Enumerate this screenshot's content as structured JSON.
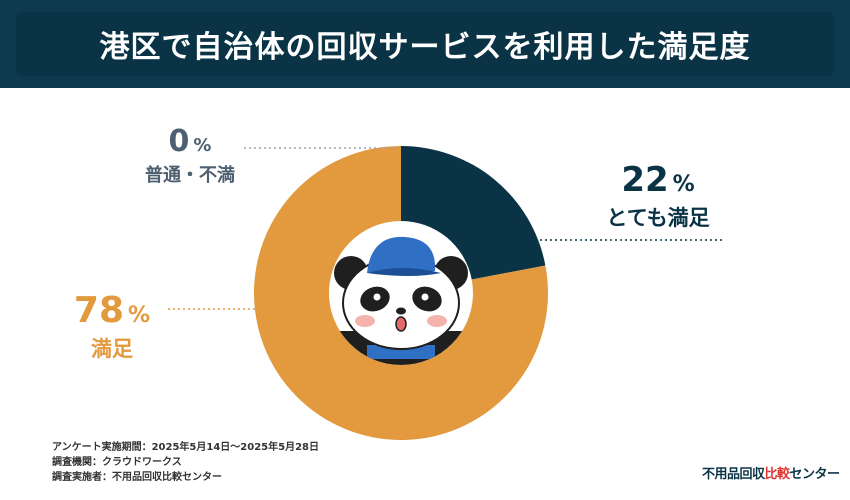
{
  "header": {
    "title": "港区で自治体の回収サービスを利用した満足度"
  },
  "chart_data": {
    "type": "pie",
    "style": "donut",
    "slices": [
      {
        "label": "とても満足",
        "value": 22,
        "color": "#0b3346"
      },
      {
        "label": "満足",
        "value": 78,
        "color": "#e39a3e"
      },
      {
        "label": "普通・不満",
        "value": 0,
        "color": "#4d5f70"
      }
    ],
    "unit": "%"
  },
  "labels": {
    "very_satisfied": {
      "value": "22",
      "unit": "%",
      "name": "とても満足"
    },
    "satisfied": {
      "value": "78",
      "unit": "%",
      "name": "満足"
    },
    "neutral": {
      "value": "0",
      "unit": "%",
      "name": "普通・不満"
    }
  },
  "footnote": {
    "line1": "アンケート実施期間：2025年5月14日～2025年5月28日",
    "line2": "調査機関：クラウドワークス",
    "line3": "調査実施者：不用品回収比較センター"
  },
  "brand": {
    "main": "不用品回収",
    "accent": "比較",
    "tail": "センター"
  }
}
